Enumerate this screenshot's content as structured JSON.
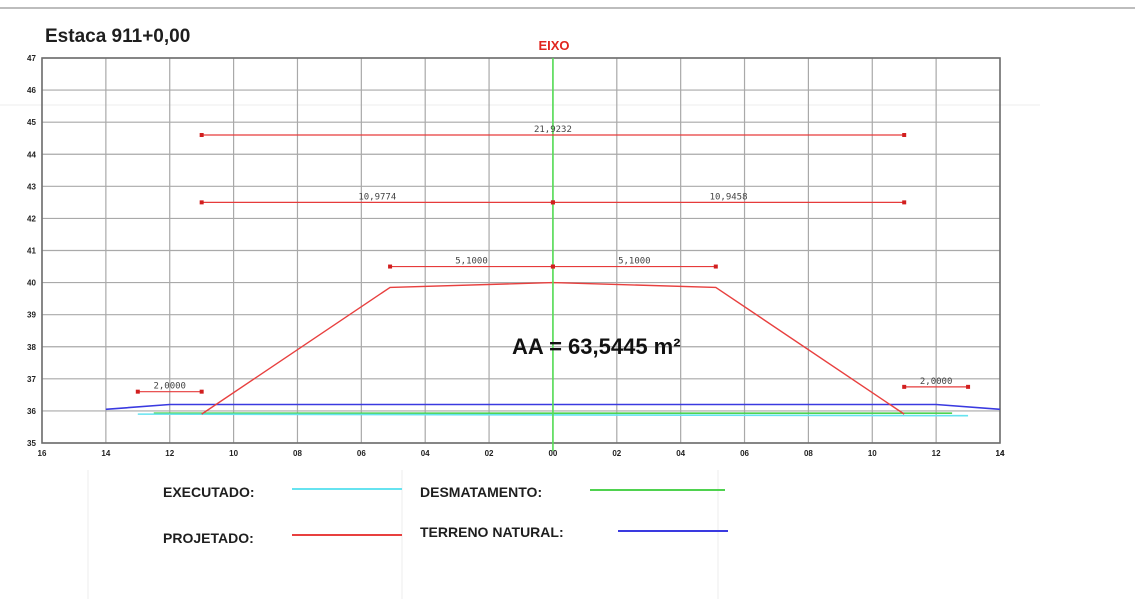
{
  "title": "Estaca 911+0,00",
  "axis_label": "EIXO",
  "area_label": "AA = 63,5445 m²",
  "colors": {
    "executado": "#66e3f0",
    "desmatamento": "#4fd24f",
    "projetado": "#e8403f",
    "terreno_natural": "#3a3ae0",
    "eixo": "#55dd55"
  },
  "x_ticks": [
    "16",
    "14",
    "12",
    "10",
    "08",
    "06",
    "04",
    "02",
    "00",
    "02",
    "04",
    "06",
    "08",
    "10",
    "12",
    "14"
  ],
  "y_ticks": [
    "35",
    "36",
    "37",
    "38",
    "39",
    "40",
    "41",
    "42",
    "43",
    "44",
    "45",
    "46",
    "47"
  ],
  "dimensions": [
    {
      "label": "21,9232",
      "x1": -11,
      "x2": 11,
      "y": 44.6
    },
    {
      "label": "10,9774",
      "x1": -11,
      "x2": 0,
      "y": 42.5
    },
    {
      "label": "10,9458",
      "x1": 0,
      "x2": 11,
      "y": 42.5
    },
    {
      "label": "5,1000",
      "x1": -5.1,
      "x2": 0,
      "y": 40.5
    },
    {
      "label": "5,1000",
      "x1": 0,
      "x2": 5.1,
      "y": 40.5
    },
    {
      "label": "2,0000",
      "x1": -13,
      "x2": -11,
      "y": 36.6
    },
    {
      "label": "2,0000",
      "x1": 11,
      "x2": 13,
      "y": 36.75
    }
  ],
  "profiles": {
    "projetado": [
      [
        -11,
        35.9
      ],
      [
        -5.1,
        39.85
      ],
      [
        0,
        40.0
      ],
      [
        5.1,
        39.85
      ],
      [
        11,
        35.9
      ]
    ],
    "terreno_natural": [
      [
        -14,
        36.05
      ],
      [
        -12,
        36.2
      ],
      [
        12,
        36.2
      ],
      [
        14,
        36.05
      ]
    ],
    "desmatamento": [
      [
        -12.5,
        35.93
      ],
      [
        12.5,
        35.93
      ]
    ],
    "executado": [
      [
        -13,
        35.9
      ],
      [
        13,
        35.85
      ]
    ]
  },
  "legend": {
    "executado": "EXECUTADO:",
    "projetado": "PROJETADO:",
    "desmatamento": "DESMATAMENTO:",
    "terreno_natural": "TERRENO NATURAL:"
  }
}
